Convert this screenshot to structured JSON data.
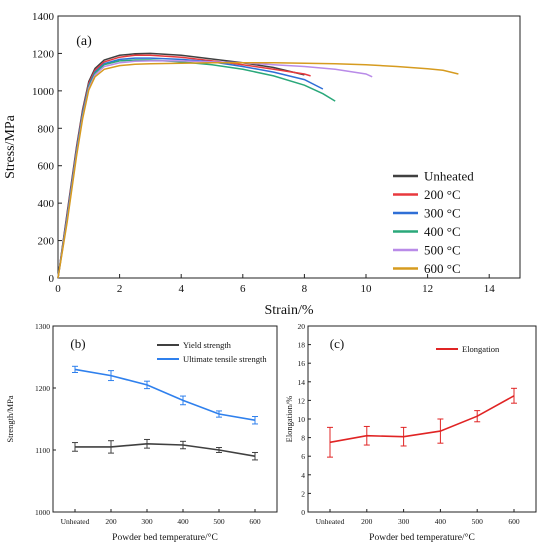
{
  "chart_data": [
    {
      "panel_label": "(a)",
      "type": "line",
      "xlabel": "Strain/%",
      "ylabel": "Stress/MPa",
      "xlim": [
        0,
        15
      ],
      "ylim": [
        0,
        1400
      ],
      "xticks": [
        0,
        2,
        4,
        6,
        8,
        10,
        12,
        14
      ],
      "yticks": [
        0,
        200,
        400,
        600,
        800,
        1000,
        1200,
        1400
      ],
      "legend_position": "bottom-right",
      "series": [
        {
          "name": "Unheated",
          "color": "#404040",
          "x": [
            0,
            0.3,
            0.6,
            0.8,
            1.0,
            1.2,
            1.5,
            2.0,
            2.5,
            3.0,
            4.0,
            5.0,
            6.0,
            7.0,
            8.0
          ],
          "y": [
            0,
            350,
            700,
            900,
            1050,
            1120,
            1165,
            1190,
            1198,
            1200,
            1190,
            1170,
            1150,
            1125,
            1085
          ]
        },
        {
          "name": "200 °C",
          "color": "#e8393e",
          "x": [
            0,
            0.3,
            0.6,
            0.8,
            1.0,
            1.2,
            1.5,
            2.0,
            2.5,
            3.0,
            4.0,
            5.0,
            6.0,
            7.0,
            8.0,
            8.2
          ],
          "y": [
            0,
            340,
            690,
            890,
            1040,
            1110,
            1155,
            1180,
            1190,
            1190,
            1180,
            1160,
            1140,
            1115,
            1090,
            1080
          ]
        },
        {
          "name": "300 °C",
          "color": "#2f6fd6",
          "x": [
            0,
            0.3,
            0.6,
            0.8,
            1.0,
            1.2,
            1.5,
            2.0,
            2.5,
            3.0,
            4.0,
            5.0,
            6.0,
            7.0,
            8.0,
            8.6
          ],
          "y": [
            0,
            330,
            680,
            880,
            1030,
            1100,
            1145,
            1168,
            1175,
            1175,
            1168,
            1155,
            1130,
            1100,
            1060,
            1010
          ]
        },
        {
          "name": "400 °C",
          "color": "#2aa87a",
          "x": [
            0,
            0.3,
            0.6,
            0.8,
            1.0,
            1.2,
            1.5,
            2.0,
            2.5,
            3.0,
            4.0,
            5.0,
            6.0,
            7.0,
            8.0,
            8.6,
            9.0
          ],
          "y": [
            0,
            320,
            670,
            870,
            1025,
            1095,
            1140,
            1160,
            1165,
            1165,
            1155,
            1140,
            1115,
            1080,
            1030,
            985,
            945
          ]
        },
        {
          "name": "500 °C",
          "color": "#b98be8",
          "x": [
            0,
            0.3,
            0.6,
            0.8,
            1.0,
            1.2,
            1.5,
            2.0,
            2.5,
            3.0,
            4.0,
            5.0,
            6.0,
            7.0,
            8.0,
            9.0,
            10.0,
            10.2
          ],
          "y": [
            0,
            310,
            660,
            860,
            1015,
            1085,
            1130,
            1150,
            1158,
            1160,
            1160,
            1155,
            1150,
            1140,
            1130,
            1115,
            1090,
            1075
          ]
        },
        {
          "name": "600 °C",
          "color": "#d69b1f",
          "x": [
            0,
            0.3,
            0.6,
            0.8,
            1.0,
            1.2,
            1.5,
            2.0,
            2.5,
            3.0,
            4.0,
            5.0,
            6.0,
            7.0,
            8.0,
            9.0,
            10.0,
            11.0,
            12.0,
            12.5,
            13.0
          ],
          "y": [
            0,
            300,
            650,
            850,
            1005,
            1075,
            1115,
            1135,
            1142,
            1145,
            1148,
            1150,
            1150,
            1150,
            1148,
            1145,
            1140,
            1130,
            1118,
            1110,
            1090
          ]
        }
      ]
    },
    {
      "panel_label": "(b)",
      "type": "line",
      "xlabel": "Powder bed temperature/°C",
      "ylabel": "Strength/MPa",
      "categories": [
        "Unheated",
        "200",
        "300",
        "400",
        "500",
        "600"
      ],
      "ylim": [
        1000,
        1300
      ],
      "yticks": [
        1000,
        1100,
        1200,
        1300
      ],
      "legend_position": "top-right",
      "series": [
        {
          "name": "Yield strength",
          "color": "#404040",
          "values": [
            1105,
            1105,
            1110,
            1108,
            1100,
            1090
          ],
          "errors": [
            7,
            10,
            7,
            6,
            4,
            6
          ]
        },
        {
          "name": "Ultimate tensile strength",
          "color": "#2f80ed",
          "values": [
            1230,
            1220,
            1205,
            1180,
            1158,
            1148
          ],
          "errors": [
            5,
            8,
            6,
            7,
            5,
            6
          ]
        }
      ]
    },
    {
      "panel_label": "(c)",
      "type": "line",
      "xlabel": "Powder bed temperature/°C",
      "ylabel": "Elongation/%",
      "categories": [
        "Unheated",
        "200",
        "300",
        "400",
        "500",
        "600"
      ],
      "ylim": [
        0,
        20
      ],
      "yticks": [
        0,
        2,
        4,
        6,
        8,
        10,
        12,
        14,
        16,
        18,
        20
      ],
      "legend_position": "top-right",
      "series": [
        {
          "name": "Elongation",
          "color": "#e02424",
          "values": [
            7.5,
            8.2,
            8.1,
            8.7,
            10.3,
            12.5
          ],
          "errors": [
            1.6,
            1.0,
            1.0,
            1.3,
            0.6,
            0.8
          ]
        }
      ]
    }
  ]
}
